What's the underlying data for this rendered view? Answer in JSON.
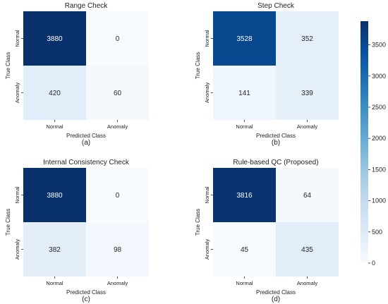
{
  "chart_data": [
    {
      "type": "heatmap",
      "title": "Range Check",
      "xlabel": "Predicted Class",
      "ylabel": "True Class",
      "x_categories": [
        "Normal",
        "Anomaly"
      ],
      "y_categories": [
        "Normal",
        "Anomaly"
      ],
      "values": [
        [
          3880,
          0
        ],
        [
          420,
          60
        ]
      ],
      "caption": "(a)"
    },
    {
      "type": "heatmap",
      "title": "Step Check",
      "xlabel": "Predicted Class",
      "ylabel": "True Class",
      "x_categories": [
        "Normal",
        "Anomaly"
      ],
      "y_categories": [
        "Normal",
        "Anomaly"
      ],
      "values": [
        [
          3528,
          352
        ],
        [
          141,
          339
        ]
      ],
      "caption": "(b)"
    },
    {
      "type": "heatmap",
      "title": "Internal Consistency Check",
      "xlabel": "Predicted Class",
      "ylabel": "True Class",
      "x_categories": [
        "Normal",
        "Anomaly"
      ],
      "y_categories": [
        "Normal",
        "Anomaly"
      ],
      "values": [
        [
          3880,
          0
        ],
        [
          382,
          98
        ]
      ],
      "caption": "(c)"
    },
    {
      "type": "heatmap",
      "title": "Rule-based QC (Proposed)",
      "xlabel": "Predicted Class",
      "ylabel": "True Class",
      "x_categories": [
        "Normal",
        "Anomaly"
      ],
      "y_categories": [
        "Normal",
        "Anomaly"
      ],
      "values": [
        [
          3816,
          64
        ],
        [
          45,
          435
        ]
      ],
      "caption": "(d)"
    }
  ],
  "colorbar": {
    "min": 0,
    "max": 3880,
    "ticks": [
      0,
      500,
      1000,
      1500,
      2000,
      2500,
      3000,
      3500
    ],
    "colormap": "Blues",
    "colors": [
      "#f7fbff",
      "#deebf7",
      "#c6dbef",
      "#9ecae1",
      "#6baed6",
      "#4292c6",
      "#2171b5",
      "#08519c",
      "#08306b"
    ]
  }
}
